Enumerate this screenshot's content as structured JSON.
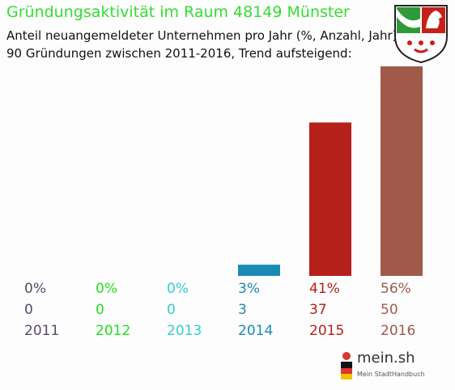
{
  "header": {
    "title": "Gründungsaktivität im Raum 48149 Münster",
    "subtitle_line1": "Anteil neuangemeldeter Unternehmen pro Jahr (%, Anzahl, Jahr)",
    "subtitle_line2": "90 Gründungen zwischen 2011-2016, Trend aufsteigend:"
  },
  "colors": {
    "title": "#33dd33"
  },
  "chart_data": {
    "type": "bar",
    "categories": [
      "2011",
      "2012",
      "2013",
      "2014",
      "2015",
      "2016"
    ],
    "values": [
      0,
      0,
      0,
      3,
      41,
      56
    ],
    "counts": [
      "0",
      "0",
      "0",
      "3",
      "37",
      "50"
    ],
    "percent_labels": [
      "0%",
      "0%",
      "0%",
      "3%",
      "41%",
      "56%"
    ],
    "colors": [
      "#5a4a6a",
      "#22dd22",
      "#33cccc",
      "#1a8ab5",
      "#b5201a",
      "#a05a4a"
    ],
    "ylim": [
      0,
      56
    ],
    "grid": false,
    "legend": "none"
  },
  "logo": {
    "name": "mein.sh",
    "tagline": "Mein StadtHandbuch"
  }
}
